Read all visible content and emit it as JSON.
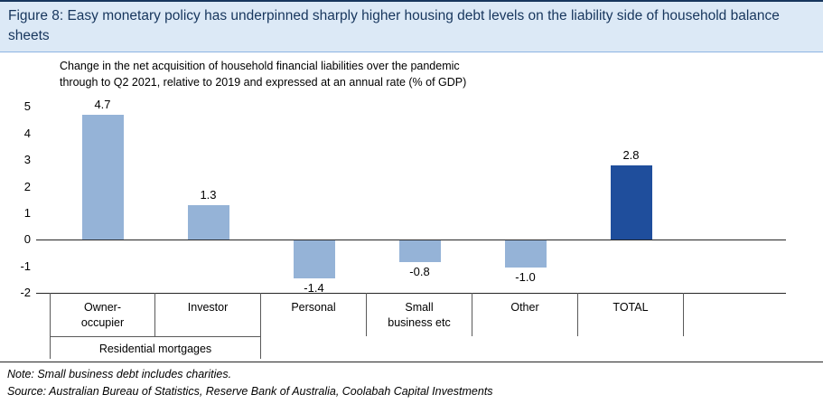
{
  "header": {
    "title": "Figure 8: Easy monetary policy has underpinned sharply higher housing debt levels on the liability side of household balance sheets"
  },
  "subtitle": "Change in the net acquisition of household financial liabilities over the pandemic\nthrough to Q2 2021, relative to 2019 and expressed at an annual rate (% of GDP)",
  "footer": {
    "note": "Note: Small business debt includes charities.",
    "source": "Source: Australian Bureau of Statistics, Reserve Bank of Australia, Coolabah Capital Investments"
  },
  "chart_data": {
    "type": "bar",
    "categories": [
      "Owner-\noccupier",
      "Investor",
      "Personal",
      "Small\nbusiness etc",
      "Other",
      "TOTAL"
    ],
    "values": [
      4.7,
      1.3,
      -1.4,
      -0.8,
      -1.0,
      2.8
    ],
    "data_labels": [
      "4.7",
      "1.3",
      "-1.4",
      "-0.8",
      "-1.0",
      "2.8"
    ],
    "group_label": "Residential mortgages",
    "group_span_categories": [
      "Owner-occupier",
      "Investor"
    ],
    "ylim": [
      -2,
      5
    ],
    "yticks": [
      5,
      4,
      3,
      2,
      1,
      0,
      -1,
      -2
    ],
    "grid": false,
    "legend": "none",
    "colors_per_bar": [
      "#95B3D7",
      "#95B3D7",
      "#95B3D7",
      "#95B3D7",
      "#95B3D7",
      "#1F4E9C"
    ]
  },
  "colors": {
    "header_bg": "#DCE9F6",
    "header_text": "#17365D",
    "bar_light": "#95B3D7",
    "bar_dark": "#1F4E9C",
    "axis_line": "#262626",
    "category_border": "#595959"
  }
}
